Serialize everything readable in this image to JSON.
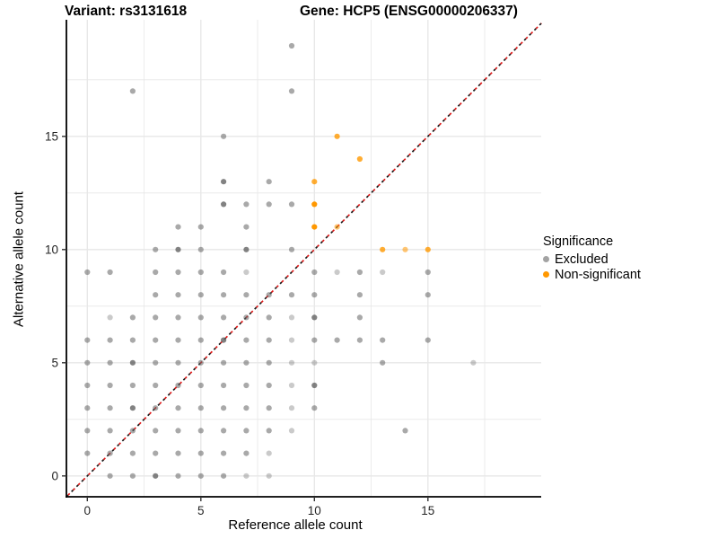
{
  "title": {
    "left": "Variant: rs3131618",
    "right": "Gene: HCP5 (ENSG00000206337)"
  },
  "chart_data": {
    "type": "scatter",
    "xlabel": "Reference allele count",
    "ylabel": "Alternative allele count",
    "x_ticks": [
      0,
      5,
      10,
      15
    ],
    "y_ticks": [
      0,
      5,
      10,
      15
    ],
    "xlim": [
      -1,
      20
    ],
    "ylim": [
      -1,
      20.2
    ],
    "grid": true,
    "grid_step": 2.5,
    "identity_line": {
      "style": "dashed",
      "colors": [
        "#1a1a1a",
        "#e01818"
      ],
      "from": [
        -1,
        -1
      ],
      "to": [
        20,
        20
      ]
    },
    "legend": {
      "title": "Significance",
      "position": "right",
      "entries": [
        {
          "label": "Excluded",
          "color": "#a3a3a3"
        },
        {
          "label": "Non-significant",
          "color": "#ff9800"
        }
      ]
    },
    "series": [
      {
        "name": "Excluded",
        "color": "#666666",
        "opacity_levels": {
          "l": 0.35,
          "m": 0.56,
          "d": 0.82
        },
        "points": [
          [
            1,
            0,
            "m"
          ],
          [
            2,
            0,
            "m"
          ],
          [
            3,
            0,
            "d"
          ],
          [
            4,
            0,
            "m"
          ],
          [
            5,
            0,
            "m"
          ],
          [
            6,
            0,
            "m"
          ],
          [
            7,
            0,
            "l"
          ],
          [
            8,
            0,
            "l"
          ],
          [
            0,
            1,
            "m"
          ],
          [
            1,
            1,
            "m"
          ],
          [
            2,
            1,
            "m"
          ],
          [
            3,
            1,
            "m"
          ],
          [
            4,
            1,
            "m"
          ],
          [
            5,
            1,
            "m"
          ],
          [
            6,
            1,
            "m"
          ],
          [
            7,
            1,
            "m"
          ],
          [
            8,
            1,
            "l"
          ],
          [
            0,
            2,
            "m"
          ],
          [
            1,
            2,
            "m"
          ],
          [
            2,
            2,
            "m"
          ],
          [
            3,
            2,
            "m"
          ],
          [
            4,
            2,
            "m"
          ],
          [
            5,
            2,
            "m"
          ],
          [
            6,
            2,
            "m"
          ],
          [
            7,
            2,
            "m"
          ],
          [
            8,
            2,
            "m"
          ],
          [
            9,
            2,
            "l"
          ],
          [
            14,
            2,
            "m"
          ],
          [
            0,
            3,
            "m"
          ],
          [
            1,
            3,
            "m"
          ],
          [
            2,
            3,
            "d"
          ],
          [
            3,
            3,
            "m"
          ],
          [
            4,
            3,
            "m"
          ],
          [
            5,
            3,
            "m"
          ],
          [
            6,
            3,
            "m"
          ],
          [
            7,
            3,
            "m"
          ],
          [
            8,
            3,
            "m"
          ],
          [
            9,
            3,
            "l"
          ],
          [
            10,
            3,
            "m"
          ],
          [
            0,
            4,
            "m"
          ],
          [
            1,
            4,
            "m"
          ],
          [
            2,
            4,
            "m"
          ],
          [
            3,
            4,
            "m"
          ],
          [
            4,
            4,
            "m"
          ],
          [
            5,
            4,
            "m"
          ],
          [
            6,
            4,
            "m"
          ],
          [
            7,
            4,
            "m"
          ],
          [
            8,
            4,
            "m"
          ],
          [
            9,
            4,
            "l"
          ],
          [
            10,
            4,
            "d"
          ],
          [
            0,
            5,
            "m"
          ],
          [
            1,
            5,
            "m"
          ],
          [
            2,
            5,
            "d"
          ],
          [
            3,
            5,
            "m"
          ],
          [
            4,
            5,
            "m"
          ],
          [
            5,
            5,
            "m"
          ],
          [
            6,
            5,
            "m"
          ],
          [
            7,
            5,
            "m"
          ],
          [
            8,
            5,
            "m"
          ],
          [
            9,
            5,
            "l"
          ],
          [
            10,
            5,
            "l"
          ],
          [
            13,
            5,
            "m"
          ],
          [
            17,
            5,
            "l"
          ],
          [
            0,
            6,
            "m"
          ],
          [
            1,
            6,
            "m"
          ],
          [
            2,
            6,
            "m"
          ],
          [
            3,
            6,
            "m"
          ],
          [
            4,
            6,
            "m"
          ],
          [
            5,
            6,
            "m"
          ],
          [
            6,
            6,
            "d"
          ],
          [
            7,
            6,
            "m"
          ],
          [
            8,
            6,
            "m"
          ],
          [
            9,
            6,
            "l"
          ],
          [
            10,
            6,
            "m"
          ],
          [
            11,
            6,
            "m"
          ],
          [
            12,
            6,
            "m"
          ],
          [
            13,
            6,
            "m"
          ],
          [
            15,
            6,
            "m"
          ],
          [
            1,
            7,
            "l"
          ],
          [
            2,
            7,
            "m"
          ],
          [
            3,
            7,
            "m"
          ],
          [
            4,
            7,
            "m"
          ],
          [
            5,
            7,
            "m"
          ],
          [
            6,
            7,
            "m"
          ],
          [
            7,
            7,
            "m"
          ],
          [
            8,
            7,
            "m"
          ],
          [
            9,
            7,
            "l"
          ],
          [
            10,
            7,
            "d"
          ],
          [
            12,
            7,
            "m"
          ],
          [
            3,
            8,
            "m"
          ],
          [
            4,
            8,
            "m"
          ],
          [
            5,
            8,
            "m"
          ],
          [
            6,
            8,
            "m"
          ],
          [
            7,
            8,
            "m"
          ],
          [
            8,
            8,
            "m"
          ],
          [
            9,
            8,
            "m"
          ],
          [
            10,
            8,
            "m"
          ],
          [
            12,
            8,
            "m"
          ],
          [
            15,
            8,
            "m"
          ],
          [
            0,
            9,
            "m"
          ],
          [
            1,
            9,
            "m"
          ],
          [
            3,
            9,
            "m"
          ],
          [
            4,
            9,
            "m"
          ],
          [
            5,
            9,
            "m"
          ],
          [
            6,
            9,
            "m"
          ],
          [
            7,
            9,
            "l"
          ],
          [
            10,
            9,
            "m"
          ],
          [
            11,
            9,
            "l"
          ],
          [
            12,
            9,
            "m"
          ],
          [
            13,
            9,
            "l"
          ],
          [
            15,
            9,
            "m"
          ],
          [
            3,
            10,
            "m"
          ],
          [
            4,
            10,
            "d"
          ],
          [
            5,
            10,
            "m"
          ],
          [
            7,
            10,
            "d"
          ],
          [
            9,
            10,
            "m"
          ],
          [
            4,
            11,
            "m"
          ],
          [
            5,
            11,
            "m"
          ],
          [
            7,
            11,
            "m"
          ],
          [
            6,
            12,
            "d"
          ],
          [
            7,
            12,
            "m"
          ],
          [
            8,
            12,
            "m"
          ],
          [
            9,
            12,
            "m"
          ],
          [
            6,
            13,
            "d"
          ],
          [
            8,
            13,
            "m"
          ],
          [
            6,
            15,
            "m"
          ],
          [
            2,
            17,
            "m"
          ],
          [
            9,
            17,
            "m"
          ],
          [
            9,
            19,
            "m"
          ]
        ]
      },
      {
        "name": "Non-significant",
        "color": "#ff9800",
        "opacity_levels": {
          "l": 0.55,
          "m": 0.8,
          "d": 1.0
        },
        "points": [
          [
            13,
            10,
            "m"
          ],
          [
            14,
            10,
            "l"
          ],
          [
            15,
            10,
            "m"
          ],
          [
            10,
            11,
            "d"
          ],
          [
            11,
            11,
            "l"
          ],
          [
            10,
            12,
            "d"
          ],
          [
            10,
            13,
            "m"
          ],
          [
            12,
            14,
            "m"
          ],
          [
            11,
            15,
            "m"
          ]
        ]
      }
    ]
  }
}
